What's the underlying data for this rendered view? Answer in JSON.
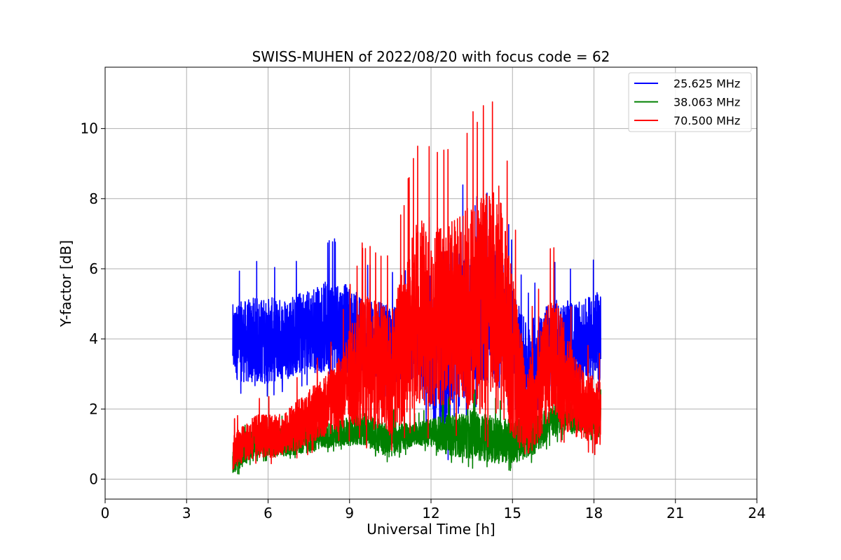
{
  "chart_data": {
    "type": "line",
    "title": "SWISS-MUHEN of 2022/08/20 with focus code = 62",
    "xlabel": "Universal Time [h]",
    "ylabel": "Y-factor [dB]",
    "xlim": [
      0,
      24
    ],
    "ylim": [
      -0.57,
      11.75
    ],
    "xticks": [
      0,
      3,
      6,
      9,
      12,
      15,
      18,
      21,
      24
    ],
    "xtick_labels": [
      "0",
      "3",
      "6",
      "9",
      "12",
      "15",
      "18",
      "21",
      "24"
    ],
    "yticks": [
      0,
      2,
      4,
      6,
      8,
      10
    ],
    "ytick_labels": [
      "0",
      "2",
      "4",
      "6",
      "8",
      "10"
    ],
    "grid": true,
    "legend_position": "top-right",
    "x_range_observed": [
      4.7,
      18.25
    ],
    "series": [
      {
        "name": "25.625 MHz",
        "color": "#0000ff",
        "summary_x": [
          4.7,
          5.5,
          6.5,
          7.5,
          8.5,
          9.5,
          10.5,
          11.5,
          12.5,
          13.5,
          14.5,
          15.5,
          16.5,
          17.5,
          18.25
        ],
        "summary_min": [
          2.5,
          2.2,
          2.4,
          2.6,
          2.5,
          2.6,
          2.3,
          2.2,
          0.0,
          2.0,
          1.9,
          1.8,
          2.0,
          2.2,
          2.3
        ],
        "summary_max": [
          5.9,
          6.3,
          6.2,
          6.5,
          6.95,
          6.2,
          5.9,
          6.1,
          9.4,
          8.0,
          8.4,
          5.4,
          6.3,
          6.1,
          6.55
        ]
      },
      {
        "name": "38.063 MHz",
        "color": "#008000",
        "summary_x": [
          4.7,
          5.5,
          6.5,
          7.5,
          8.5,
          9.5,
          10.5,
          11.5,
          12.5,
          13.5,
          14.5,
          15.5,
          16.5,
          17.5,
          18.25
        ],
        "summary_min": [
          0.0,
          0.5,
          0.5,
          0.6,
          0.8,
          0.8,
          0.4,
          0.9,
          0.5,
          0.3,
          0.2,
          0.3,
          1.0,
          1.2,
          1.0
        ],
        "summary_max": [
          1.2,
          1.8,
          1.8,
          1.9,
          2.0,
          2.3,
          2.0,
          1.9,
          2.3,
          2.6,
          2.3,
          2.3,
          2.5,
          2.6,
          2.6
        ]
      },
      {
        "name": "70.500 MHz",
        "color": "#ff0000",
        "summary_x": [
          4.7,
          5.5,
          6.5,
          7.5,
          8.5,
          9.5,
          10.5,
          11.5,
          12.5,
          13.5,
          14.5,
          15.5,
          16.5,
          17.5,
          18.25
        ],
        "summary_min": [
          0.1,
          0.4,
          0.4,
          0.7,
          1.0,
          0.9,
          0.5,
          1.2,
          1.1,
          0.8,
          0.7,
          0.0,
          1.0,
          0.7,
          0.6
        ],
        "summary_max": [
          1.7,
          2.4,
          2.4,
          3.3,
          4.1,
          6.9,
          6.5,
          9.7,
          9.4,
          10.5,
          11.2,
          4.6,
          6.9,
          4.2,
          3.6
        ]
      }
    ]
  }
}
